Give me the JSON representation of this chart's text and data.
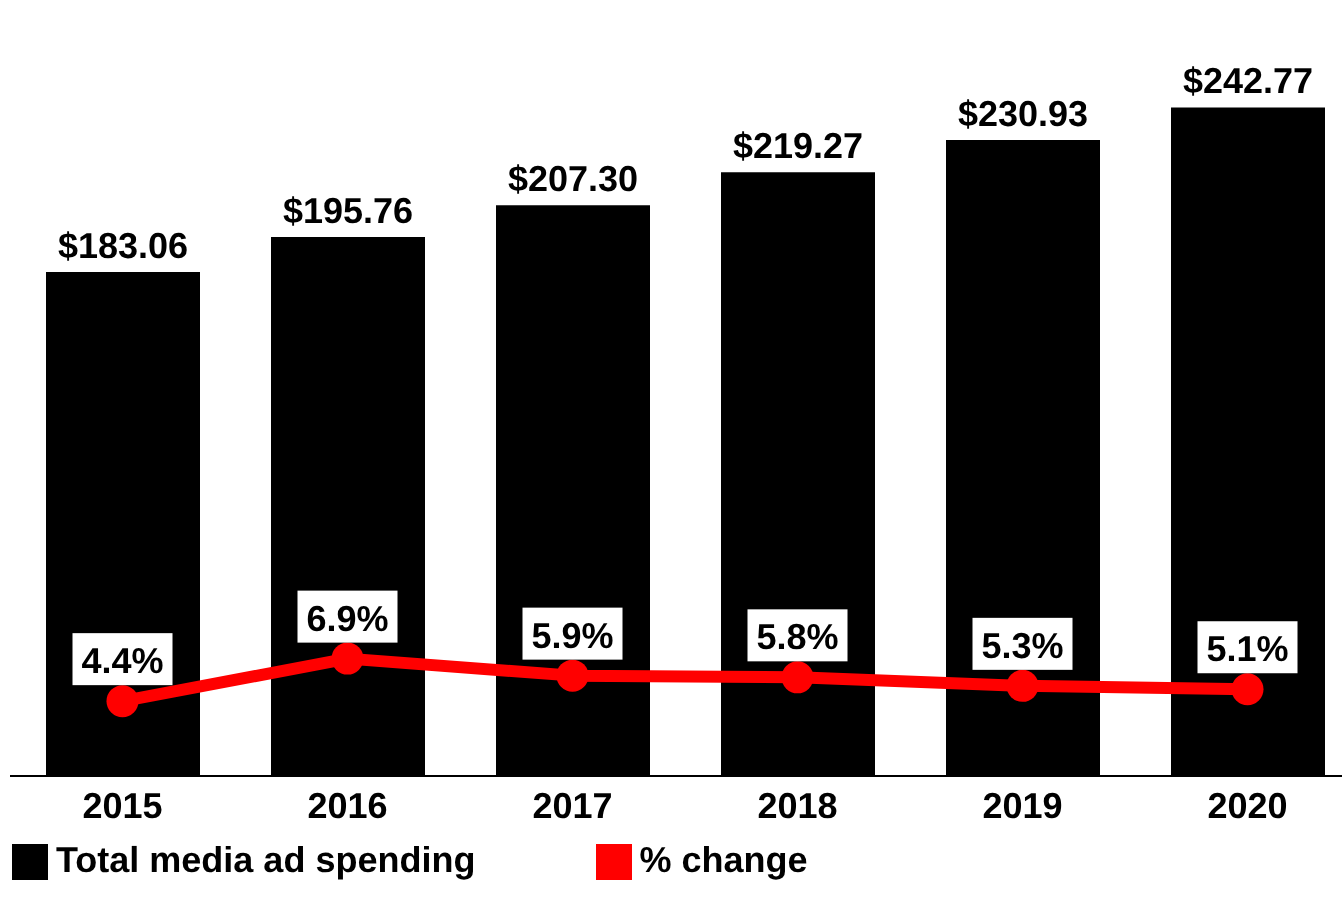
{
  "chart_data": {
    "type": "bar",
    "categories": [
      "2015",
      "2016",
      "2017",
      "2018",
      "2019",
      "2020"
    ],
    "series": [
      {
        "name": "Total media ad spending",
        "color": "#000000",
        "values": [
          183.06,
          195.76,
          207.3,
          219.27,
          230.93,
          242.77
        ],
        "value_labels": [
          "$183.06",
          "$195.76",
          "$207.30",
          "$219.27",
          "$230.93",
          "$242.77"
        ]
      },
      {
        "name": "% change",
        "type": "line",
        "axis": "y2",
        "color": "#ff0000",
        "values": [
          4.4,
          6.9,
          5.9,
          5.8,
          5.3,
          5.1
        ],
        "value_labels": [
          "4.4%",
          "6.9%",
          "5.9%",
          "5.8%",
          "5.3%",
          "5.1%"
        ]
      }
    ],
    "tick_labels": "x",
    "legend": "bottom left",
    "marker": "circle",
    "line_style": "solid"
  }
}
